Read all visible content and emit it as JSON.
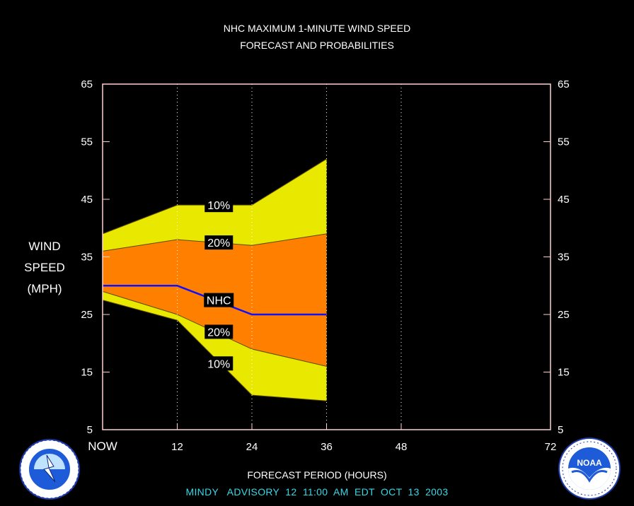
{
  "chart_data": {
    "type": "area",
    "title": "NHC MAXIMUM 1-MINUTE WIND SPEED",
    "subtitle": "FORECAST AND PROBABILITIES",
    "ylabel": [
      "WIND",
      "SPEED",
      "(MPH)"
    ],
    "xlabel": "FORECAST PERIOD (HOURS)",
    "ylim": [
      5,
      65
    ],
    "xlim": [
      0,
      72
    ],
    "yticks": [
      5,
      15,
      25,
      35,
      45,
      55,
      65
    ],
    "xticks": [
      {
        "value": 0,
        "label": "NOW"
      },
      {
        "value": 12,
        "label": "12"
      },
      {
        "value": 24,
        "label": "24"
      },
      {
        "value": 36,
        "label": "36"
      },
      {
        "value": 48,
        "label": "48"
      },
      {
        "value": 72,
        "label": "72"
      }
    ],
    "x": [
      0,
      12,
      24,
      36
    ],
    "series": [
      {
        "name": "10%",
        "role": "upper-10",
        "values": [
          39,
          44,
          44,
          52
        ]
      },
      {
        "name": "20%",
        "role": "upper-20",
        "values": [
          36,
          38,
          37,
          39
        ]
      },
      {
        "name": "NHC",
        "role": "nhc",
        "values": [
          30,
          30,
          25,
          25
        ]
      },
      {
        "name": "20%",
        "role": "lower-20",
        "values": [
          29,
          25,
          19,
          16
        ]
      },
      {
        "name": "10%",
        "role": "lower-10",
        "values": [
          27.5,
          24,
          11,
          10
        ]
      }
    ],
    "band_labels": [
      {
        "text": "10%",
        "x": 18,
        "y": 44
      },
      {
        "text": "20%",
        "x": 18,
        "y": 37.5
      },
      {
        "text": "NHC",
        "x": 18,
        "y": 27.5
      },
      {
        "text": "20%",
        "x": 18,
        "y": 22
      },
      {
        "text": "10%",
        "x": 18,
        "y": 16.5
      }
    ],
    "colors": {
      "outer_band": "#e8e800",
      "inner_band": "#ff8000",
      "nhc_line": "#1010ff",
      "frame": "#ffd0d0",
      "grid": "#ffffff",
      "text": "#ffffff"
    }
  },
  "footer": "MINDY   ADVISORY  12  11:00  AM  EDT  OCT  13  2003",
  "logos": {
    "nws": {
      "icon": "national-weather-service-logo",
      "text": "NATIONAL WEATHER SERVICE"
    },
    "noaa": {
      "icon": "noaa-logo",
      "text": "NOAA"
    }
  }
}
